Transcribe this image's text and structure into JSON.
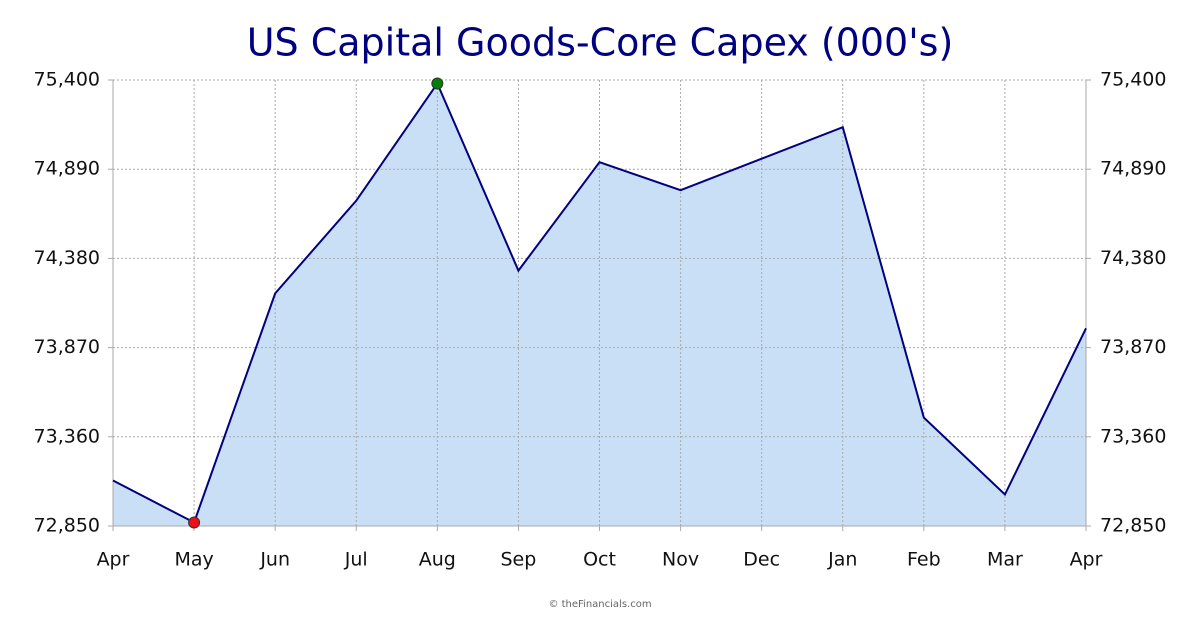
{
  "chart_data": {
    "type": "area",
    "title": "US Capital Goods-Core Capex (000's)",
    "categories": [
      "Apr",
      "May",
      "Jun",
      "Jul",
      "Aug",
      "Sep",
      "Oct",
      "Nov",
      "Dec",
      "Jan",
      "Feb",
      "Mar",
      "Apr"
    ],
    "values": [
      73110,
      72870,
      74180,
      74710,
      75380,
      74310,
      74930,
      74770,
      74950,
      75130,
      73470,
      73030,
      73980
    ],
    "color": "#000080",
    "fill": "#c9dff5",
    "max_color": "#008000",
    "min_color": "#e8101a",
    "ylim": [
      72850,
      75400
    ],
    "yticks": [
      {
        "value": 72850,
        "label": "72,850"
      },
      {
        "value": 73360,
        "label": "73,360"
      },
      {
        "value": 73870,
        "label": "73,870"
      },
      {
        "value": 74380,
        "label": "74,380"
      },
      {
        "value": 74890,
        "label": "74,890"
      },
      {
        "value": 75400,
        "label": "75,400"
      }
    ],
    "grid": true,
    "source": "© theFinancials.com"
  }
}
